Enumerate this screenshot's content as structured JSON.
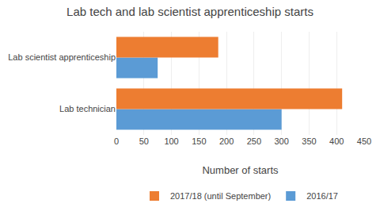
{
  "chart_data": {
    "type": "bar",
    "orientation": "horizontal",
    "title": "Lab tech and lab scientist apprenticeship starts",
    "categories": [
      "Lab technician",
      "Lab scientist apprenticeship"
    ],
    "series": [
      {
        "name": "2017/18 (until September)",
        "color": "#ED7D31",
        "values": [
          410,
          185
        ]
      },
      {
        "name": "2016/17",
        "color": "#5B9BD5",
        "values": [
          300,
          75
        ]
      }
    ],
    "xlabel": "Number of starts",
    "xlim": [
      0,
      450
    ],
    "xticks": [
      0,
      50,
      100,
      150,
      200,
      250,
      300,
      350,
      400,
      450
    ],
    "grid": true,
    "legend": "bottom"
  }
}
